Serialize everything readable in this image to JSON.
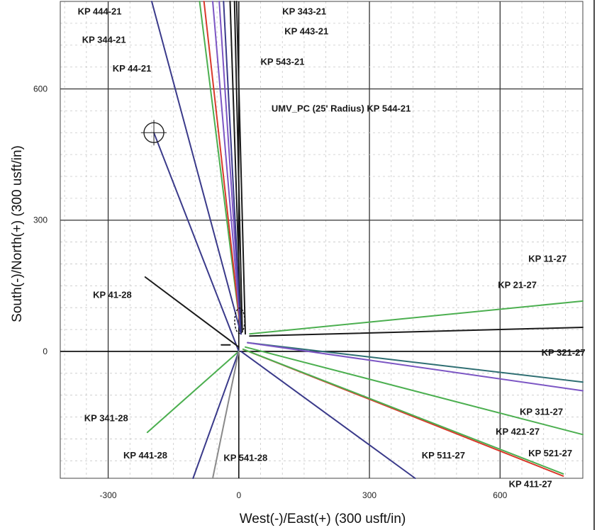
{
  "chart_data": {
    "type": "line",
    "xlabel": "West(-)/East(+) (300 usft/in)",
    "ylabel": "South(-)/North(+) (300 usft/in)",
    "xlim": [
      -410,
      790
    ],
    "ylim": [
      -290,
      800
    ],
    "x_ticks": [
      {
        "value": -300,
        "label": "-300"
      },
      {
        "value": 0,
        "label": "0"
      },
      {
        "value": 300,
        "label": "300"
      },
      {
        "value": 600,
        "label": "600"
      }
    ],
    "y_ticks": [
      {
        "value": 0,
        "label": "0"
      },
      {
        "value": 300,
        "label": "300"
      },
      {
        "value": 600,
        "label": "600"
      }
    ],
    "grid": true,
    "colors": {
      "black": "#1a1a1a",
      "green": "#4caf50",
      "red": "#d9392b",
      "purple": "#7c56c4",
      "navy": "#3a3a8a",
      "teal": "#2f6f73",
      "gray": "#8a8a8a"
    },
    "series": [
      {
        "color": "black",
        "points": [
          [
            5,
            45
          ],
          [
            -20,
            800
          ]
        ]
      },
      {
        "color": "black",
        "points": [
          [
            8,
            45
          ],
          [
            -10,
            800
          ]
        ]
      },
      {
        "color": "green",
        "points": [
          [
            5,
            40
          ],
          [
            -90,
            800
          ]
        ]
      },
      {
        "color": "red",
        "points": [
          [
            5,
            40
          ],
          [
            -80,
            800
          ]
        ]
      },
      {
        "color": "purple",
        "points": [
          [
            5,
            40
          ],
          [
            -60,
            800
          ]
        ]
      },
      {
        "color": "purple",
        "points": [
          [
            5,
            40
          ],
          [
            -45,
            800
          ]
        ]
      },
      {
        "color": "navy",
        "points": [
          [
            5,
            40
          ],
          [
            -200,
            800
          ]
        ]
      },
      {
        "color": "navy",
        "points": [
          [
            5,
            40
          ],
          [
            -35,
            800
          ]
        ]
      },
      {
        "color": "black",
        "points": [
          [
            15,
            40
          ],
          [
            -5,
            800
          ]
        ]
      },
      {
        "color": "navy",
        "points": [
          [
            0,
            0
          ],
          [
            -195,
            500
          ]
        ]
      },
      {
        "color": "black",
        "points": [
          [
            0,
            10
          ],
          [
            -215,
            170
          ]
        ]
      },
      {
        "color": "black",
        "points": [
          [
            -20,
            15
          ],
          [
            -40,
            15
          ]
        ]
      },
      {
        "color": "green",
        "points": [
          [
            25,
            40
          ],
          [
            790,
            115
          ]
        ]
      },
      {
        "color": "black",
        "points": [
          [
            25,
            35
          ],
          [
            790,
            55
          ]
        ]
      },
      {
        "color": "teal",
        "points": [
          [
            20,
            20
          ],
          [
            790,
            -70
          ]
        ]
      },
      {
        "color": "purple",
        "points": [
          [
            20,
            20
          ],
          [
            790,
            -90
          ]
        ]
      },
      {
        "color": "green",
        "points": [
          [
            15,
            10
          ],
          [
            790,
            -190
          ]
        ]
      },
      {
        "color": "red",
        "points": [
          [
            10,
            5
          ],
          [
            745,
            -285
          ]
        ]
      },
      {
        "color": "green",
        "points": [
          [
            10,
            5
          ],
          [
            745,
            -280
          ]
        ]
      },
      {
        "color": "navy",
        "points": [
          [
            5,
            0
          ],
          [
            405,
            -290
          ]
        ]
      },
      {
        "color": "green",
        "points": [
          [
            0,
            0
          ],
          [
            -210,
            -185
          ]
        ]
      },
      {
        "color": "navy",
        "points": [
          [
            0,
            0
          ],
          [
            -105,
            -290
          ]
        ]
      },
      {
        "color": "gray",
        "points": [
          [
            0,
            0
          ],
          [
            -60,
            -290
          ]
        ]
      }
    ],
    "well_labels": [
      {
        "text": "KP 444-21",
        "x": -370,
        "y": 770
      },
      {
        "text": "KP 344-21",
        "x": -360,
        "y": 705
      },
      {
        "text": "KP 44-21",
        "x": -290,
        "y": 640
      },
      {
        "text": "KP 343-21",
        "x": 100,
        "y": 770
      },
      {
        "text": "KP 443-21",
        "x": 105,
        "y": 725
      },
      {
        "text": "KP 543-21",
        "x": 50,
        "y": 655
      },
      {
        "text": "UMV_PC (25' Radius) KP 544-21",
        "x": 75,
        "y": 548
      },
      {
        "text": "KP 11-27",
        "x": 665,
        "y": 205
      },
      {
        "text": "KP 21-27",
        "x": 595,
        "y": 145
      },
      {
        "text": "KP 41-28",
        "x": -335,
        "y": 122
      },
      {
        "text": "KP 321-27",
        "x": 695,
        "y": -10
      },
      {
        "text": "KP 311-27",
        "x": 645,
        "y": -145
      },
      {
        "text": "KP 421-27",
        "x": 590,
        "y": -190
      },
      {
        "text": "KP 521-27",
        "x": 665,
        "y": -240
      },
      {
        "text": "KP 511-27",
        "x": 420,
        "y": -245
      },
      {
        "text": "KP 411-27",
        "x": 620,
        "y": -310
      },
      {
        "text": "KP 341-28",
        "x": -355,
        "y": -160
      },
      {
        "text": "KP 441-28",
        "x": -265,
        "y": -245
      },
      {
        "text": "KP 541-28",
        "x": -35,
        "y": -250
      }
    ]
  }
}
